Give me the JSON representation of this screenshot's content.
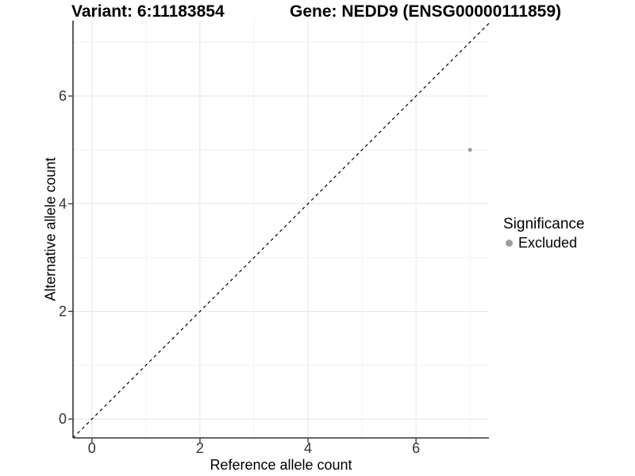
{
  "chart_data": {
    "type": "scatter",
    "title_left": "Variant: 6:11183854",
    "title_right": "Gene: NEDD9 (ENSG00000111859)",
    "xlabel": "Reference allele count",
    "ylabel": "Alternative allele count",
    "xlim": [
      -0.35,
      7.35
    ],
    "ylim": [
      -0.35,
      7.4
    ],
    "x_major_ticks": [
      0,
      2,
      4,
      6
    ],
    "y_major_ticks": [
      0,
      2,
      4,
      6
    ],
    "x_minor_gridlines": [
      1,
      3,
      5,
      7
    ],
    "y_minor_gridlines": [
      1,
      3,
      5,
      7
    ],
    "grid": "on",
    "legend_position": "right",
    "series": [
      {
        "name": "Excluded",
        "color": "#9e9e9e",
        "points": [
          {
            "x": 7,
            "y": 5
          }
        ]
      }
    ],
    "reference_line": {
      "kind": "identity y=x",
      "style": "dashed",
      "color": "#000000"
    },
    "legend": {
      "title": "Significance",
      "items": [
        {
          "label": "Excluded",
          "marker": "circle",
          "color": "#9e9e9e"
        }
      ]
    },
    "colors": {
      "grid_major": "#e6e6e6",
      "grid_minor": "#f2f2f2",
      "axis_line": "#333333",
      "tick_mark": "#333333",
      "tick_text": "#333333",
      "background": "#ffffff"
    }
  }
}
